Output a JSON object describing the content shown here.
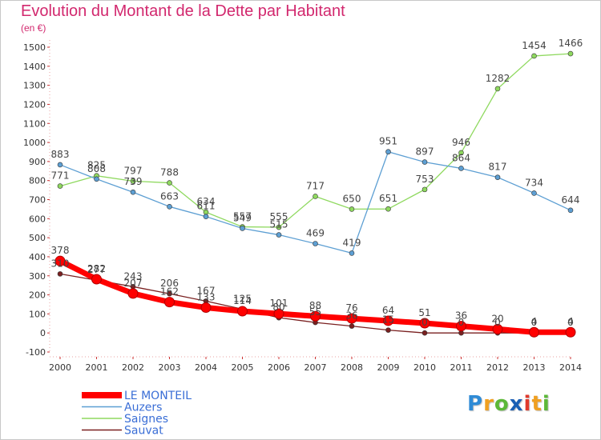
{
  "title": "Evolution du Montant de la Dette par Habitant",
  "subtitle": "(en €)",
  "logo": {
    "letters": [
      "P",
      "r",
      "o",
      "x",
      "i",
      "t",
      "i"
    ],
    "colors": [
      "#2f8bd6",
      "#f0a020",
      "#5cb838",
      "#1a5fb4",
      "#e03a2c",
      "#f0a020",
      "#5cb838"
    ]
  },
  "chart_data": {
    "type": "line",
    "x": [
      "2000",
      "2001",
      "2002",
      "2003",
      "2004",
      "2005",
      "2006",
      "2007",
      "2008",
      "2009",
      "2010",
      "2011",
      "2012",
      "2013",
      "2014"
    ],
    "ylim": [
      -100,
      1500
    ],
    "yticks": [
      "-100",
      "0",
      "100",
      "200",
      "300",
      "400",
      "500",
      "600",
      "700",
      "800",
      "900",
      "1000",
      "1100",
      "1200",
      "1300",
      "1400",
      "1500"
    ],
    "grid": false,
    "legend_position": "bottom-left",
    "series": [
      {
        "name": "LE MONTEIL",
        "color": "#ff0000",
        "values": [
          378,
          282,
          207,
          162,
          133,
          114,
          101,
          88,
          76,
          64,
          51,
          36,
          20,
          4,
          4
        ],
        "labels": [
          "378",
          "282",
          "207",
          "162",
          "133",
          "114",
          "101",
          "88",
          "76",
          "64",
          "51",
          "36",
          "20",
          "4",
          "4"
        ]
      },
      {
        "name": "Auzers",
        "color": "#5d9fd3",
        "values": [
          883,
          808,
          739,
          663,
          611,
          549,
          515,
          469,
          419,
          951,
          897,
          864,
          817,
          734,
          644
        ],
        "labels": [
          "883",
          "808",
          "739",
          "663",
          "611",
          "549",
          "515",
          "469",
          "419",
          "951",
          "897",
          "864",
          "817",
          "734",
          "644"
        ]
      },
      {
        "name": "Saignes",
        "color": "#8fd95f",
        "values": [
          771,
          825,
          797,
          788,
          634,
          557,
          555,
          717,
          650,
          651,
          753,
          946,
          1282,
          1454,
          1466
        ],
        "labels": [
          "771",
          "825",
          "797",
          "788",
          "634",
          "557",
          "555",
          "717",
          "650",
          "651",
          "753",
          "946",
          "1282",
          "1454",
          "1466"
        ]
      },
      {
        "name": "Sauvat",
        "color": "#7a2020",
        "values": [
          310,
          277,
          243,
          206,
          167,
          125,
          80,
          55,
          36,
          15,
          0,
          0,
          0,
          0,
          0
        ],
        "labels": [
          "310",
          "277",
          "243",
          "206",
          "167",
          "125",
          "80",
          "55",
          "36",
          "15",
          "0",
          "0",
          "0",
          "0",
          "0"
        ]
      }
    ]
  }
}
